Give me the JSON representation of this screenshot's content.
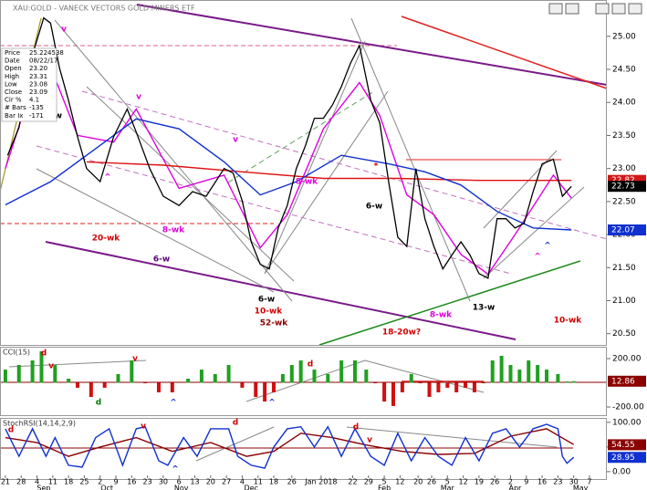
{
  "window": {
    "title": "XAU:GOLD - VANECK VECTORS GOLD MINERS ETF"
  },
  "info": [
    {
      "label": "Price",
      "value": "25.224538"
    },
    {
      "label": "Date",
      "value": "08/22/17"
    },
    {
      "label": "Open",
      "value": "23.20"
    },
    {
      "label": "High",
      "value": "23.31"
    },
    {
      "label": "Low",
      "value": "23.08"
    },
    {
      "label": "Close",
      "value": "23.09"
    },
    {
      "label": "Cir %",
      "value": "4.1"
    },
    {
      "label": "# Bars",
      "value": "-135"
    },
    {
      "label": "Bar Ix",
      "value": "-171"
    }
  ],
  "chart_data": [
    {
      "type": "line",
      "xlim": [
        -2.4,
        266.7
      ],
      "xticks": [
        {
          "value": 0,
          "label": "21"
        },
        {
          "value": 7,
          "label": "28"
        },
        {
          "value": 14,
          "label": "4"
        },
        {
          "value": 21,
          "label": "11"
        },
        {
          "value": 28,
          "label": "18"
        },
        {
          "value": 35,
          "label": "25"
        },
        {
          "value": 42,
          "label": "2"
        },
        {
          "value": 49,
          "label": "9"
        },
        {
          "value": 56,
          "label": "16"
        },
        {
          "value": 63,
          "label": "23"
        },
        {
          "value": 70,
          "label": "30"
        },
        {
          "value": 77,
          "label": "6"
        },
        {
          "value": 84,
          "label": "13"
        },
        {
          "value": 91,
          "label": "20"
        },
        {
          "value": 98,
          "label": "27"
        },
        {
          "value": 105,
          "label": "4"
        },
        {
          "value": 112,
          "label": "11"
        },
        {
          "value": 119,
          "label": "18"
        },
        {
          "value": 127,
          "label": "26"
        },
        {
          "value": 140,
          "label": "Jan 2018"
        },
        {
          "value": 154,
          "label": "22"
        },
        {
          "value": 161,
          "label": "29"
        },
        {
          "value": 168,
          "label": "5"
        },
        {
          "value": 175,
          "label": "12"
        },
        {
          "value": 183,
          "label": "20"
        },
        {
          "value": 189,
          "label": "26"
        },
        {
          "value": 196,
          "label": "5"
        },
        {
          "value": 203,
          "label": "12"
        },
        {
          "value": 210,
          "label": "19"
        },
        {
          "value": 217,
          "label": "26"
        },
        {
          "value": 224,
          "label": "2"
        },
        {
          "value": 231,
          "label": "9"
        },
        {
          "value": 238,
          "label": "16"
        },
        {
          "value": 245,
          "label": "23"
        },
        {
          "value": 252,
          "label": "30"
        },
        {
          "value": 259,
          "label": "7"
        }
      ],
      "months": [
        {
          "value": 17,
          "label": "Sep"
        },
        {
          "value": 45,
          "label": "Oct"
        },
        {
          "value": 78,
          "label": "Nov"
        },
        {
          "value": 109,
          "label": "Dec"
        },
        {
          "value": 168,
          "label": "Feb"
        },
        {
          "value": 196,
          "label": "Mar"
        },
        {
          "value": 226,
          "label": "Apr"
        },
        {
          "value": 255,
          "label": "May"
        }
      ],
      "ylim": [
        20.33,
        25.55
      ],
      "yticks": [
        {
          "value": 25,
          "label": "25.00"
        },
        {
          "value": 24.5,
          "label": "24.50"
        },
        {
          "value": 24,
          "label": "24.00"
        },
        {
          "value": 23.5,
          "label": "23.50"
        },
        {
          "value": 23,
          "label": "23.00"
        },
        {
          "value": 22.5,
          "label": "22.50"
        },
        {
          "value": 22,
          "label": "22.00"
        },
        {
          "value": 21.5,
          "label": "21.50"
        },
        {
          "value": 21,
          "label": "21.00"
        },
        {
          "value": 20.5,
          "label": "20.50"
        }
      ],
      "series": [
        {
          "color": "#e000e0",
          "x": [
            0,
            17,
            32,
            48,
            58,
            77,
            97,
            113,
            125,
            141,
            157,
            166,
            178,
            190,
            202,
            214,
            226,
            243,
            251
          ],
          "values": [
            23.0,
            24.8,
            23.5,
            23.4,
            23.9,
            22.7,
            22.9,
            21.8,
            22.3,
            23.6,
            24.3,
            23.8,
            22.6,
            22.3,
            21.7,
            21.4,
            22.0,
            22.9,
            22.55
          ]
        },
        {
          "color": "#e01010",
          "x": [
            36,
            70,
            105,
            141,
            174,
            210,
            251
          ],
          "values": [
            23.1,
            23.05,
            22.95,
            22.85,
            22.85,
            22.82,
            22.82
          ]
        },
        {
          "color": "#1030d0",
          "x": [
            0,
            20,
            40,
            58,
            77,
            97,
            113,
            129,
            149,
            170,
            186,
            202,
            218,
            234,
            251
          ],
          "values": [
            22.45,
            22.8,
            23.3,
            23.75,
            23.6,
            23.1,
            22.6,
            22.8,
            23.2,
            23.07,
            22.95,
            22.75,
            22.35,
            22.1,
            22.07
          ]
        },
        {
          "color": "#000000",
          "x": [
            1,
            6,
            12,
            17,
            20,
            24,
            28,
            32,
            36,
            42,
            48,
            54,
            58,
            64,
            70,
            77,
            83,
            89,
            97,
            101,
            105,
            109,
            113,
            117,
            121,
            125,
            129,
            133,
            137,
            141,
            145,
            149,
            153,
            157,
            162,
            166,
            170,
            174,
            178,
            182,
            186,
            190,
            194,
            198,
            202,
            206,
            210,
            214,
            218,
            222,
            226,
            230,
            234,
            238,
            243,
            247,
            251
          ],
          "values": [
            23.2,
            23.62,
            24.72,
            25.28,
            25.2,
            24.52,
            24.03,
            23.48,
            23.0,
            22.8,
            23.48,
            23.9,
            23.55,
            23.0,
            22.58,
            22.44,
            22.65,
            22.58,
            23.0,
            22.93,
            22.51,
            21.89,
            21.55,
            21.48,
            22.1,
            22.44,
            23.0,
            23.34,
            23.76,
            23.76,
            23.96,
            24.24,
            24.59,
            24.86,
            24.03,
            23.69,
            22.79,
            21.96,
            21.82,
            23.0,
            22.24,
            21.82,
            21.48,
            21.69,
            21.89,
            21.69,
            21.41,
            21.34,
            22.24,
            22.24,
            22.1,
            22.17,
            22.65,
            23.07,
            23.14,
            22.58,
            22.73
          ]
        }
      ],
      "markers": [
        {
          "value": 22.82,
          "color": "#d01818"
        },
        {
          "value": 22.73,
          "color": "#000000"
        },
        {
          "value": 22.07,
          "color": "#1030d0"
        }
      ],
      "annotations": [
        {
          "text": "v",
          "color": "#e000e0"
        },
        {
          "text": "v",
          "color": "#e000e0"
        },
        {
          "text": "v",
          "color": "#e000e0"
        },
        {
          "text": "^",
          "color": "#e000e0"
        },
        {
          "text": "-w",
          "color": "#000000"
        },
        {
          "text": "20-wk",
          "color": "#d00000"
        },
        {
          "text": "8-wk",
          "color": "#e000e0"
        },
        {
          "text": "6-w",
          "color": "#5a007a"
        },
        {
          "text": "6-w",
          "color": "#000000"
        },
        {
          "text": "10-wk",
          "color": "#d00000"
        },
        {
          "text": "52-wk",
          "color": "#8b0000"
        },
        {
          "text": "8-wk",
          "color": "#e000e0"
        },
        {
          "text": "6-w",
          "color": "#000000"
        },
        {
          "text": "*",
          "color": "#d00000"
        },
        {
          "text": "8-wk",
          "color": "#e000e0"
        },
        {
          "text": "18-20w?",
          "color": "#d00000"
        },
        {
          "text": "13-w",
          "color": "#000000"
        },
        {
          "text": "10-wk",
          "color": "#d00000"
        },
        {
          "text": "^",
          "color": "#1030d0"
        },
        {
          "text": "^",
          "color": "#e000e0"
        }
      ]
    },
    {
      "type": "bar",
      "title": "CCI(15)",
      "ylim": [
        -268,
        298
      ],
      "yticks": [
        {
          "value": 200,
          "label": "200.00"
        },
        {
          "value": -200,
          "label": "-200.00"
        }
      ],
      "colors": {
        "positive": "#20a020",
        "negative": "#d01010"
      },
      "x": [
        0,
        6,
        12,
        16,
        22,
        28,
        32,
        38,
        44,
        50,
        56,
        62,
        68,
        74,
        81,
        87,
        93,
        99,
        105,
        111,
        115,
        119,
        123,
        127,
        131,
        137,
        143,
        149,
        155,
        160,
        164,
        168,
        172,
        176,
        180,
        184,
        188,
        192,
        196,
        200,
        204,
        208,
        212,
        216,
        220,
        224,
        228,
        232,
        236,
        240,
        245,
        249,
        252
      ],
      "values": [
        109,
        147,
        185,
        260,
        147,
        34,
        -41,
        -117,
        -41,
        72,
        185,
        -4,
        -79,
        -79,
        34,
        109,
        72,
        147,
        -41,
        -117,
        -155,
        -79,
        72,
        147,
        185,
        109,
        72,
        185,
        185,
        109,
        -4,
        -155,
        -192,
        -79,
        72,
        -4,
        -117,
        -79,
        -41,
        -79,
        -41,
        -79,
        -4,
        185,
        223,
        147,
        109,
        185,
        147,
        109,
        72,
        11,
        13
      ],
      "markers": [
        {
          "value": 12.86,
          "color": "#8b0000"
        }
      ],
      "annotations": [
        {
          "text": "d",
          "color": "#d00000"
        },
        {
          "text": "v",
          "color": "#d00000"
        },
        {
          "text": "v",
          "color": "#d00000"
        },
        {
          "text": "d",
          "color": "#008000"
        },
        {
          "text": "^",
          "color": "#1030d0"
        },
        {
          "text": "^",
          "color": "#1030d0"
        },
        {
          "text": "d",
          "color": "#d00000"
        }
      ]
    },
    {
      "type": "line",
      "title": "StochRSI(14,14,2,9)",
      "ylim": [
        -15,
        109
      ],
      "yticks": [
        {
          "value": 100,
          "label": "100.00"
        },
        {
          "value": 50,
          "label": "50.00"
        },
        {
          "value": 0,
          "label": "0.00"
        }
      ],
      "series": [
        {
          "color": "#8b0000",
          "x": [
            0,
            14,
            28,
            42,
            58,
            74,
            91,
            107,
            119,
            131,
            145,
            160,
            176,
            192,
            208,
            224,
            240,
            252
          ],
          "values": [
            69,
            59,
            31,
            50,
            69,
            41,
            59,
            31,
            41,
            78,
            69,
            54,
            41,
            35,
            37,
            72,
            87,
            55
          ]
        },
        {
          "color": "#1030d0",
          "x": [
            0,
            6,
            12,
            18,
            22,
            28,
            34,
            40,
            46,
            52,
            58,
            62,
            68,
            72,
            79,
            85,
            91,
            99,
            103,
            109,
            115,
            119,
            125,
            131,
            137,
            143,
            149,
            155,
            162,
            168,
            174,
            180,
            186,
            192,
            198,
            204,
            210,
            216,
            222,
            228,
            234,
            240,
            245,
            247,
            249,
            252
          ],
          "values": [
            87,
            31,
            87,
            31,
            69,
            13,
            9,
            69,
            87,
            13,
            87,
            91,
            22,
            13,
            69,
            31,
            87,
            87,
            31,
            13,
            7,
            50,
            87,
            91,
            50,
            91,
            31,
            87,
            31,
            13,
            78,
            22,
            69,
            31,
            13,
            69,
            22,
            78,
            87,
            50,
            87,
            96,
            87,
            31,
            17,
            29
          ]
        }
      ],
      "markers": [
        {
          "value": 54.55,
          "color": "#8b0000"
        },
        {
          "value": 28.95,
          "color": "#1030d0"
        }
      ],
      "annotations": [
        {
          "text": "d",
          "color": "#d00000"
        },
        {
          "text": "v",
          "color": "#d00000"
        },
        {
          "text": "d",
          "color": "#d00000"
        },
        {
          "text": "^",
          "color": "#1030d0"
        },
        {
          "text": "d",
          "color": "#d00000"
        },
        {
          "text": "v",
          "color": "#d00000"
        }
      ]
    }
  ]
}
